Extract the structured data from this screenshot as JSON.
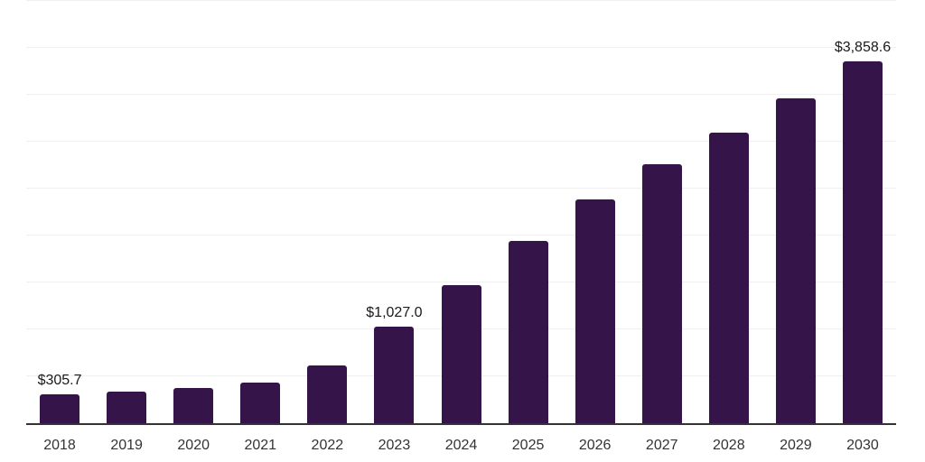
{
  "chart_data": {
    "type": "bar",
    "title": "",
    "xlabel": "",
    "ylabel": "",
    "categories": [
      "2018",
      "2019",
      "2020",
      "2021",
      "2022",
      "2023",
      "2024",
      "2025",
      "2026",
      "2027",
      "2028",
      "2029",
      "2030"
    ],
    "values": [
      305.7,
      335,
      375,
      430,
      620,
      1027.0,
      1470,
      1940,
      2385,
      2760,
      3100,
      3460,
      3858.6
    ],
    "value_labels": {
      "2018": "$305.7",
      "2023": "$1,027.0",
      "2030": "$3,858.6"
    },
    "ylim": [
      0,
      4500
    ],
    "gridline_step": 500,
    "grid": "horizontal",
    "legend_position": "none",
    "y_tick_labels_visible": false,
    "colors": {
      "bar": "#351549",
      "gridline": "#f0f0f0",
      "axis_line": "#333333",
      "value_label_text": "#1a1a1a",
      "x_tick_text": "#333333",
      "background": "#ffffff"
    }
  }
}
